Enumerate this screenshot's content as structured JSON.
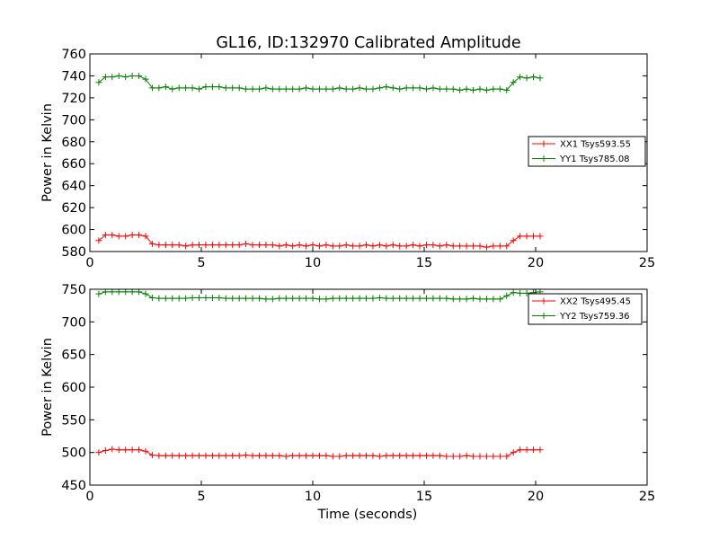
{
  "figure": {
    "title": "GL16, ID:132970 Calibrated Amplitude"
  },
  "chart_data": [
    {
      "type": "line",
      "title": "GL16, ID:132970 Calibrated Amplitude",
      "xlabel": "",
      "ylabel": "Power in Kelvin",
      "xlim": [
        0,
        25
      ],
      "ylim": [
        580,
        760
      ],
      "xticks": [
        0,
        5,
        10,
        15,
        20,
        25
      ],
      "yticks": [
        580,
        600,
        620,
        640,
        660,
        680,
        700,
        720,
        740,
        760
      ],
      "grid": false,
      "legend_position": "center-right",
      "series": [
        {
          "name": "XX1 Tsys593.55",
          "color": "#ff0000",
          "marker": "+",
          "x": [
            0.4,
            0.7,
            1.0,
            1.3,
            1.6,
            1.9,
            2.2,
            2.5,
            2.8,
            3.1,
            3.4,
            3.7,
            4.0,
            4.3,
            4.6,
            4.9,
            5.2,
            5.5,
            5.8,
            6.1,
            6.4,
            6.7,
            7.0,
            7.3,
            7.6,
            7.9,
            8.2,
            8.5,
            8.8,
            9.1,
            9.4,
            9.7,
            10.0,
            10.3,
            10.6,
            10.9,
            11.2,
            11.5,
            11.8,
            12.1,
            12.4,
            12.7,
            13.0,
            13.3,
            13.6,
            13.9,
            14.2,
            14.5,
            14.8,
            15.1,
            15.4,
            15.7,
            16.0,
            16.3,
            16.6,
            16.9,
            17.2,
            17.5,
            17.8,
            18.1,
            18.4,
            18.7,
            19.0,
            19.3,
            19.6,
            19.9,
            20.2
          ],
          "values": [
            590,
            595,
            595,
            594,
            594,
            595,
            595,
            594,
            587,
            586,
            586,
            586,
            586,
            585,
            586,
            586,
            586,
            586,
            586,
            586,
            586,
            586,
            587,
            586,
            586,
            586,
            586,
            585,
            586,
            585,
            586,
            585,
            586,
            585,
            586,
            585,
            585,
            586,
            585,
            585,
            586,
            585,
            586,
            585,
            586,
            585,
            585,
            586,
            585,
            586,
            586,
            585,
            586,
            585,
            585,
            585,
            585,
            585,
            584,
            585,
            585,
            585,
            590,
            594,
            594,
            594,
            594
          ]
        },
        {
          "name": "YY1 Tsys785.08",
          "color": "#008000",
          "marker": "+",
          "x": [
            0.4,
            0.7,
            1.0,
            1.3,
            1.6,
            1.9,
            2.2,
            2.5,
            2.8,
            3.1,
            3.4,
            3.7,
            4.0,
            4.3,
            4.6,
            4.9,
            5.2,
            5.5,
            5.8,
            6.1,
            6.4,
            6.7,
            7.0,
            7.3,
            7.6,
            7.9,
            8.2,
            8.5,
            8.8,
            9.1,
            9.4,
            9.7,
            10.0,
            10.3,
            10.6,
            10.9,
            11.2,
            11.5,
            11.8,
            12.1,
            12.4,
            12.7,
            13.0,
            13.3,
            13.6,
            13.9,
            14.2,
            14.5,
            14.8,
            15.1,
            15.4,
            15.7,
            16.0,
            16.3,
            16.6,
            16.9,
            17.2,
            17.5,
            17.8,
            18.1,
            18.4,
            18.7,
            19.0,
            19.3,
            19.6,
            19.9,
            20.2
          ],
          "values": [
            734,
            739,
            739,
            740,
            739,
            740,
            740,
            737,
            729,
            729,
            730,
            728,
            729,
            729,
            729,
            728,
            730,
            730,
            730,
            729,
            729,
            729,
            728,
            728,
            728,
            729,
            728,
            728,
            728,
            728,
            728,
            729,
            728,
            728,
            728,
            728,
            729,
            728,
            728,
            729,
            728,
            728,
            729,
            730,
            729,
            728,
            729,
            729,
            729,
            728,
            729,
            728,
            728,
            728,
            727,
            728,
            727,
            728,
            727,
            728,
            728,
            727,
            734,
            739,
            738,
            739,
            738
          ]
        }
      ]
    },
    {
      "type": "line",
      "title": "",
      "xlabel": "Time (seconds)",
      "ylabel": "Power in Kelvin",
      "xlim": [
        0,
        25
      ],
      "ylim": [
        450,
        750
      ],
      "xticks": [
        0,
        5,
        10,
        15,
        20,
        25
      ],
      "yticks": [
        450,
        500,
        550,
        600,
        650,
        700,
        750
      ],
      "grid": false,
      "legend_position": "top-right",
      "series": [
        {
          "name": "XX2 Tsys495.45",
          "color": "#ff0000",
          "marker": "+",
          "x": [
            0.4,
            0.7,
            1.0,
            1.3,
            1.6,
            1.9,
            2.2,
            2.5,
            2.8,
            3.1,
            3.4,
            3.7,
            4.0,
            4.3,
            4.6,
            4.9,
            5.2,
            5.5,
            5.8,
            6.1,
            6.4,
            6.7,
            7.0,
            7.3,
            7.6,
            7.9,
            8.2,
            8.5,
            8.8,
            9.1,
            9.4,
            9.7,
            10.0,
            10.3,
            10.6,
            10.9,
            11.2,
            11.5,
            11.8,
            12.1,
            12.4,
            12.7,
            13.0,
            13.3,
            13.6,
            13.9,
            14.2,
            14.5,
            14.8,
            15.1,
            15.4,
            15.7,
            16.0,
            16.3,
            16.6,
            16.9,
            17.2,
            17.5,
            17.8,
            18.1,
            18.4,
            18.7,
            19.0,
            19.3,
            19.6,
            19.9,
            20.2
          ],
          "values": [
            500,
            503,
            505,
            504,
            504,
            504,
            504,
            502,
            496,
            495,
            495,
            495,
            495,
            495,
            495,
            495,
            495,
            495,
            495,
            495,
            495,
            495,
            496,
            495,
            495,
            495,
            495,
            495,
            494,
            495,
            495,
            495,
            495,
            495,
            495,
            494,
            494,
            495,
            495,
            495,
            495,
            495,
            494,
            495,
            495,
            495,
            495,
            495,
            495,
            495,
            495,
            495,
            494,
            494,
            494,
            495,
            494,
            494,
            494,
            494,
            494,
            494,
            500,
            504,
            504,
            504,
            504
          ]
        },
        {
          "name": "YY2 Tsys759.36",
          "color": "#008000",
          "marker": "+",
          "x": [
            0.4,
            0.7,
            1.0,
            1.3,
            1.6,
            1.9,
            2.2,
            2.5,
            2.8,
            3.1,
            3.4,
            3.7,
            4.0,
            4.3,
            4.6,
            4.9,
            5.2,
            5.5,
            5.8,
            6.1,
            6.4,
            6.7,
            7.0,
            7.3,
            7.6,
            7.9,
            8.2,
            8.5,
            8.8,
            9.1,
            9.4,
            9.7,
            10.0,
            10.3,
            10.6,
            10.9,
            11.2,
            11.5,
            11.8,
            12.1,
            12.4,
            12.7,
            13.0,
            13.3,
            13.6,
            13.9,
            14.2,
            14.5,
            14.8,
            15.1,
            15.4,
            15.7,
            16.0,
            16.3,
            16.6,
            16.9,
            17.2,
            17.5,
            17.8,
            18.1,
            18.4,
            18.7,
            19.0,
            19.3,
            19.6,
            19.9,
            20.2
          ],
          "values": [
            743,
            746,
            746,
            746,
            746,
            746,
            746,
            743,
            737,
            736,
            736,
            736,
            736,
            736,
            737,
            737,
            737,
            737,
            737,
            736,
            736,
            736,
            736,
            736,
            736,
            735,
            735,
            736,
            736,
            736,
            736,
            736,
            736,
            735,
            735,
            736,
            736,
            736,
            736,
            736,
            736,
            736,
            737,
            736,
            736,
            736,
            736,
            736,
            736,
            736,
            736,
            736,
            736,
            735,
            735,
            735,
            736,
            735,
            735,
            735,
            735,
            740,
            745,
            744,
            744,
            745,
            746
          ]
        }
      ]
    }
  ]
}
